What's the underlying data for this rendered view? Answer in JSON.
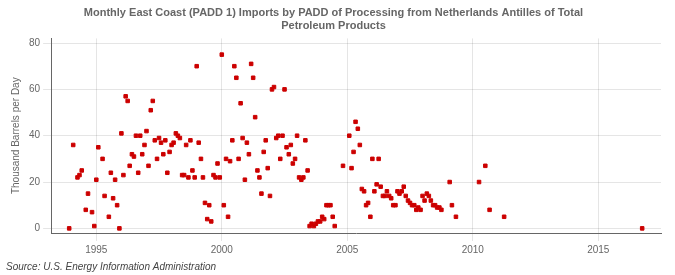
{
  "chart_data": {
    "type": "scatter",
    "title": "Monthly East Coast (PADD 1) Imports by PADD of Processing from Netherlands Antilles of Total\nPetroleum Products",
    "ylabel": "Thousand Barrels per Day",
    "annotations": [
      "Source: U.S. Energy Information Administration"
    ],
    "color": "#cc0000",
    "marker": "square",
    "grid": true,
    "xlim": [
      1993.2,
      2017.5
    ],
    "ylim": [
      -2,
      82
    ],
    "xticks": [
      1995,
      2000,
      2005,
      2010,
      2015
    ],
    "yticks": [
      0,
      20,
      40,
      60,
      80
    ],
    "x": [
      1993.92,
      1994.08,
      1994.25,
      1994.33,
      1994.42,
      1994.58,
      1994.67,
      1994.83,
      1994.92,
      1995.0,
      1995.08,
      1995.25,
      1995.33,
      1995.5,
      1995.58,
      1995.67,
      1995.75,
      1995.83,
      1995.92,
      1996.0,
      1996.08,
      1996.17,
      1996.25,
      1996.33,
      1996.42,
      1996.5,
      1996.58,
      1996.67,
      1996.75,
      1996.83,
      1996.92,
      1997.0,
      1997.08,
      1997.17,
      1997.25,
      1997.33,
      1997.42,
      1997.5,
      1997.58,
      1997.67,
      1997.75,
      1997.83,
      1997.92,
      1998.0,
      1998.08,
      1998.17,
      1998.25,
      1998.33,
      1998.42,
      1998.5,
      1998.58,
      1998.67,
      1998.75,
      1998.83,
      1998.92,
      1999.0,
      1999.08,
      1999.17,
      1999.25,
      1999.33,
      1999.42,
      1999.5,
      1999.58,
      1999.67,
      1999.75,
      1999.83,
      1999.92,
      2000.0,
      2000.08,
      2000.17,
      2000.25,
      2000.33,
      2000.42,
      2000.5,
      2000.58,
      2000.67,
      2000.75,
      2000.83,
      2000.92,
      2001.0,
      2001.08,
      2001.17,
      2001.25,
      2001.33,
      2001.42,
      2001.5,
      2001.58,
      2001.67,
      2001.75,
      2001.83,
      2001.92,
      2002.0,
      2002.08,
      2002.17,
      2002.25,
      2002.33,
      2002.42,
      2002.5,
      2002.58,
      2002.67,
      2002.75,
      2002.83,
      2002.92,
      2003.0,
      2003.08,
      2003.17,
      2003.25,
      2003.33,
      2003.42,
      2003.5,
      2003.58,
      2003.67,
      2003.75,
      2003.83,
      2003.92,
      2004.0,
      2004.08,
      2004.17,
      2004.25,
      2004.33,
      2004.42,
      2004.5,
      2004.83,
      2005.08,
      2005.17,
      2005.25,
      2005.33,
      2005.42,
      2005.5,
      2005.58,
      2005.67,
      2005.75,
      2005.83,
      2005.92,
      2006.0,
      2006.08,
      2006.17,
      2006.25,
      2006.33,
      2006.42,
      2006.5,
      2006.58,
      2006.67,
      2006.75,
      2006.83,
      2006.92,
      2007.0,
      2007.08,
      2007.17,
      2007.25,
      2007.33,
      2007.42,
      2007.5,
      2007.58,
      2007.67,
      2007.75,
      2007.83,
      2007.92,
      2008.0,
      2008.08,
      2008.17,
      2008.25,
      2008.33,
      2008.42,
      2008.5,
      2008.58,
      2008.67,
      2008.75,
      2009.08,
      2009.17,
      2009.33,
      2010.25,
      2010.5,
      2010.67,
      2011.25,
      2016.75
    ],
    "values": [
      0,
      36,
      22,
      23,
      25,
      8,
      15,
      7,
      1,
      21,
      35,
      30,
      14,
      5,
      24,
      13,
      21,
      10,
      0,
      41,
      23,
      57,
      55,
      27,
      32,
      31,
      40,
      24,
      40,
      32,
      36,
      42,
      27,
      51,
      55,
      38,
      30,
      39,
      37,
      32,
      38,
      24,
      33,
      36,
      37,
      41,
      40,
      39,
      23,
      23,
      36,
      22,
      38,
      25,
      22,
      70,
      37,
      30,
      22,
      11,
      4,
      10,
      3,
      23,
      22,
      28,
      22,
      75,
      10,
      30,
      5,
      29,
      38,
      70,
      65,
      30,
      54,
      39,
      21,
      37,
      32,
      71,
      65,
      48,
      25,
      22,
      15,
      33,
      38,
      26,
      14,
      60,
      61,
      39,
      40,
      30,
      40,
      60,
      35,
      32,
      36,
      28,
      30,
      40,
      22,
      21,
      22,
      38,
      25,
      1,
      2,
      1,
      2,
      3,
      3,
      5,
      4,
      10,
      10,
      10,
      5,
      1,
      27,
      40,
      26,
      33,
      46,
      43,
      36,
      17,
      16,
      10,
      11,
      5,
      30,
      16,
      19,
      30,
      18,
      14,
      14,
      16,
      14,
      13,
      10,
      10,
      16,
      15,
      16,
      18,
      14,
      12,
      11,
      10,
      10,
      8,
      9,
      8,
      14,
      12,
      15,
      14,
      12,
      10,
      10,
      9,
      9,
      8,
      20,
      10,
      5,
      20,
      27,
      8,
      5,
      0
    ]
  }
}
